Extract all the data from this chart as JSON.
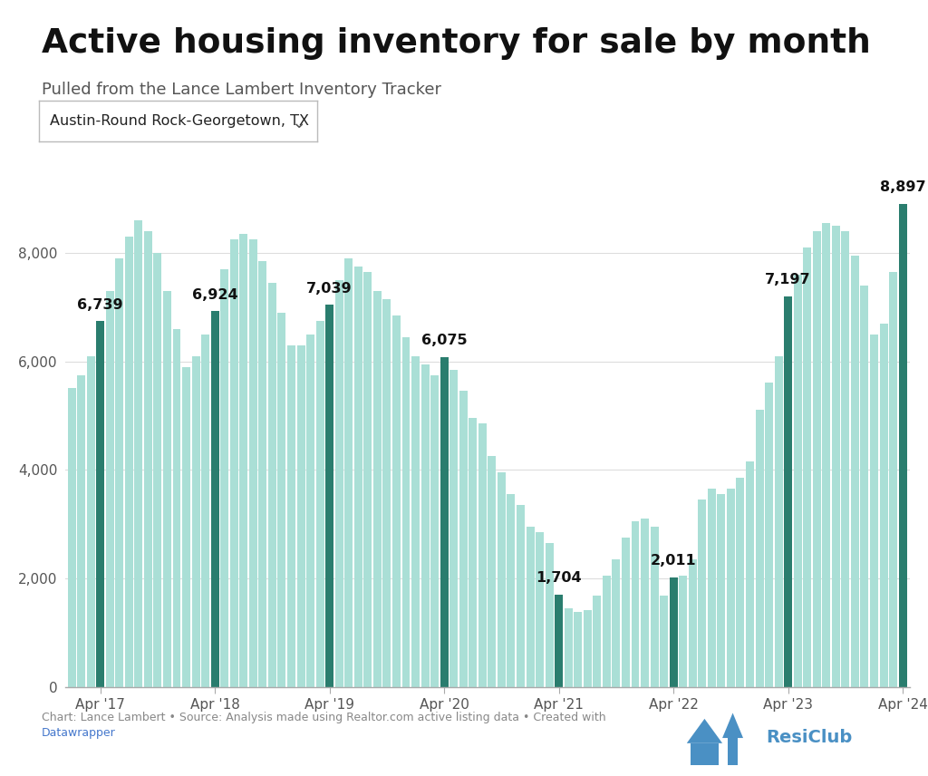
{
  "title": "Active housing inventory for sale by month",
  "subtitle": "Pulled from the Lance Lambert Inventory Tracker",
  "dropdown_label": "Austin-Round Rock-Georgetown, TX",
  "footnote": "Chart: Lance Lambert • Source: Analysis made using Realtor.com active listing data • Created with",
  "footnote_link": "Datawrapper",
  "background_color": "#ffffff",
  "bar_color_normal": "#aadfd6",
  "bar_color_highlight": "#2a7d6e",
  "yticks": [
    0,
    2000,
    4000,
    6000,
    8000
  ],
  "ylim": [
    0,
    9800
  ],
  "highlighted_months": [
    3,
    15,
    27,
    39,
    51,
    63,
    75,
    87
  ],
  "labeled_bars": {
    "3": {
      "value": 6739,
      "label": "6,739"
    },
    "15": {
      "value": 6924,
      "label": "6,924"
    },
    "27": {
      "value": 7039,
      "label": "7,039"
    },
    "39": {
      "value": 6075,
      "label": "6,075"
    },
    "51": {
      "value": 1704,
      "label": "1,704"
    },
    "63": {
      "value": 2011,
      "label": "2,011"
    },
    "75": {
      "value": 7197,
      "label": "7,197"
    },
    "87": {
      "value": 8897,
      "label": "8,897"
    }
  },
  "xtick_positions": [
    3,
    15,
    27,
    39,
    51,
    63,
    75,
    87
  ],
  "xtick_labels": [
    "Apr '17",
    "Apr '18",
    "Apr '19",
    "Apr '20",
    "Apr '21",
    "Apr '22",
    "Apr '23",
    "Apr '24"
  ],
  "monthly_values": [
    5500,
    5750,
    6100,
    6739,
    7300,
    7900,
    8300,
    8600,
    8400,
    8000,
    7300,
    6600,
    5900,
    6100,
    6500,
    6924,
    7700,
    8250,
    8350,
    8250,
    7850,
    7450,
    6900,
    6300,
    6300,
    6500,
    6750,
    7039,
    7500,
    7900,
    7750,
    7650,
    7300,
    7150,
    6850,
    6450,
    6100,
    5950,
    5750,
    6075,
    5850,
    5450,
    4950,
    4850,
    4250,
    3950,
    3550,
    3350,
    2950,
    2850,
    2650,
    1704,
    1450,
    1380,
    1420,
    1680,
    2050,
    2350,
    2750,
    3050,
    3100,
    2950,
    1680,
    2011,
    2050,
    2350,
    3450,
    3650,
    3550,
    3650,
    3850,
    4150,
    5100,
    5600,
    6100,
    7197,
    7600,
    8100,
    8400,
    8550,
    8500,
    8400,
    7950,
    7400,
    6500,
    6700,
    7650,
    8897
  ]
}
